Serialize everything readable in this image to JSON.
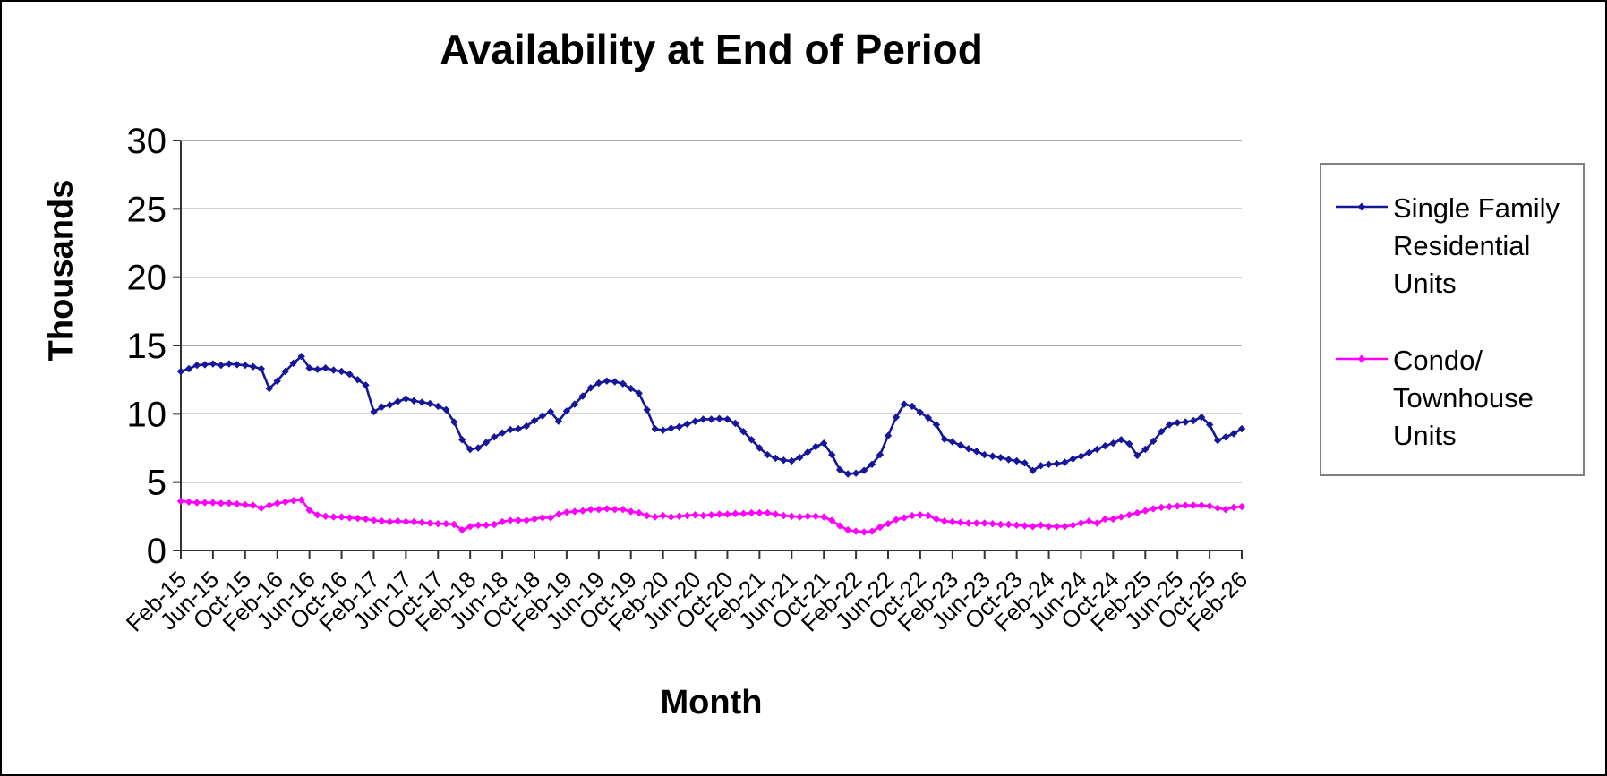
{
  "chart_data": {
    "type": "line",
    "title": "Availability at End of Period",
    "xlabel": "Month",
    "ylabel": "Thousands",
    "ylim": [
      0,
      30
    ],
    "y_ticks": [
      0,
      5,
      10,
      15,
      20,
      25,
      30
    ],
    "grid": true,
    "legend_position": "right",
    "x_unit": "monthly points, labels every 4 months",
    "x_tick_labels": [
      "Feb-15",
      "Jun-15",
      "Oct-15",
      "Feb-16",
      "Jun-16",
      "Oct-16",
      "Feb-17",
      "Jun-17",
      "Oct-17",
      "Feb-18",
      "Jun-18",
      "Oct-18",
      "Feb-19",
      "Jun-19",
      "Oct-19",
      "Feb-20",
      "Jun-20",
      "Oct-20",
      "Feb-21",
      "Jun-21",
      "Oct-21",
      "Feb-22",
      "Jun-22",
      "Oct-22",
      "Feb-23",
      "Jun-23",
      "Oct-23",
      "Feb-24",
      "Jun-24",
      "Oct-24",
      "Feb-25",
      "Jun-25",
      "Oct-25",
      "Feb-26"
    ],
    "label_step": 4,
    "series": [
      {
        "name": "Single Family Residential Units",
        "legend_lines": [
          "Single Family",
          "Residential",
          "Units"
        ],
        "color": "#16169b",
        "marker": "diamond",
        "values": [
          13.1,
          13.3,
          13.55,
          13.6,
          13.65,
          13.55,
          13.65,
          13.6,
          13.55,
          13.45,
          13.3,
          11.85,
          12.4,
          13.1,
          13.7,
          14.2,
          13.35,
          13.25,
          13.35,
          13.2,
          13.1,
          12.9,
          12.5,
          12.1,
          10.15,
          10.5,
          10.65,
          10.9,
          11.1,
          10.95,
          10.85,
          10.75,
          10.55,
          10.3,
          9.4,
          8.1,
          7.4,
          7.5,
          7.9,
          8.3,
          8.6,
          8.85,
          8.9,
          9.1,
          9.5,
          9.85,
          10.15,
          9.45,
          10.2,
          10.7,
          11.3,
          11.9,
          12.25,
          12.4,
          12.35,
          12.2,
          11.85,
          11.5,
          10.3,
          8.9,
          8.8,
          8.95,
          9.05,
          9.25,
          9.45,
          9.6,
          9.6,
          9.65,
          9.6,
          9.3,
          8.7,
          8.1,
          7.5,
          7.0,
          6.75,
          6.6,
          6.55,
          6.8,
          7.2,
          7.6,
          7.85,
          7.0,
          5.9,
          5.6,
          5.65,
          5.85,
          6.3,
          7.0,
          8.4,
          9.75,
          10.7,
          10.55,
          10.1,
          9.7,
          9.2,
          8.15,
          7.95,
          7.7,
          7.45,
          7.25,
          7.0,
          6.9,
          6.8,
          6.65,
          6.55,
          6.4,
          5.85,
          6.2,
          6.3,
          6.35,
          6.45,
          6.7,
          6.9,
          7.15,
          7.4,
          7.65,
          7.85,
          8.1,
          7.8,
          6.95,
          7.4,
          8.0,
          8.7,
          9.2,
          9.35,
          9.4,
          9.5,
          9.75,
          9.2,
          8.05,
          8.3,
          8.55,
          8.9
        ]
      },
      {
        "name": "Condo/Townhouse Units",
        "legend_lines": [
          "Condo/",
          "Townhouse",
          "Units"
        ],
        "color": "#ff00ff",
        "marker": "diamond",
        "values": [
          3.6,
          3.55,
          3.5,
          3.5,
          3.5,
          3.45,
          3.45,
          3.4,
          3.35,
          3.3,
          3.1,
          3.3,
          3.45,
          3.55,
          3.65,
          3.7,
          2.95,
          2.6,
          2.5,
          2.45,
          2.45,
          2.4,
          2.35,
          2.3,
          2.2,
          2.15,
          2.1,
          2.15,
          2.1,
          2.1,
          2.05,
          2.0,
          1.95,
          1.95,
          1.9,
          1.5,
          1.75,
          1.85,
          1.85,
          1.9,
          2.1,
          2.2,
          2.2,
          2.2,
          2.3,
          2.4,
          2.4,
          2.65,
          2.8,
          2.85,
          2.9,
          3.0,
          3.0,
          3.05,
          3.0,
          3.0,
          2.85,
          2.75,
          2.55,
          2.45,
          2.55,
          2.45,
          2.5,
          2.55,
          2.6,
          2.55,
          2.6,
          2.65,
          2.65,
          2.7,
          2.7,
          2.75,
          2.75,
          2.75,
          2.65,
          2.55,
          2.5,
          2.45,
          2.5,
          2.5,
          2.45,
          2.2,
          1.8,
          1.5,
          1.4,
          1.35,
          1.4,
          1.7,
          1.95,
          2.25,
          2.4,
          2.55,
          2.6,
          2.55,
          2.3,
          2.15,
          2.1,
          2.05,
          2.0,
          2.0,
          2.0,
          1.95,
          1.9,
          1.9,
          1.85,
          1.8,
          1.75,
          1.85,
          1.75,
          1.75,
          1.75,
          1.85,
          2.0,
          2.15,
          2.0,
          2.3,
          2.3,
          2.45,
          2.6,
          2.75,
          2.9,
          3.05,
          3.15,
          3.2,
          3.25,
          3.3,
          3.3,
          3.3,
          3.25,
          3.1,
          3.0,
          3.15,
          3.2
        ]
      }
    ],
    "colors": {
      "gridline": "#8f8f8f",
      "axis": "#333333",
      "text": "#000000",
      "legend_border": "#808080"
    }
  }
}
